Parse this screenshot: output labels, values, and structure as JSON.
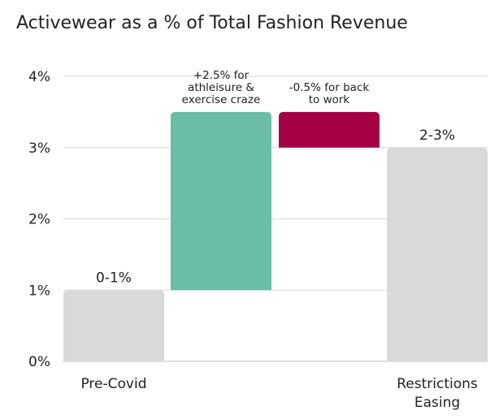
{
  "chart_data": {
    "type": "waterfall",
    "title": "Activewear as a % of Total Fashion Revenue",
    "xlabel": "",
    "ylabel": "",
    "ylim": [
      0,
      4
    ],
    "y_ticks": [
      "0%",
      "1%",
      "2%",
      "3%",
      "4%"
    ],
    "grid": true,
    "legend": "none",
    "categories": [
      "Pre-Covid",
      "",
      "",
      "Restrictions Easing"
    ],
    "bars": [
      {
        "category": "Pre-Covid",
        "kind": "total",
        "start": 0,
        "end": 1,
        "label": "0-1%",
        "annotation": [],
        "color": "#d9d9d9"
      },
      {
        "category": "",
        "kind": "increase",
        "start": 1,
        "end": 3.5,
        "label": "",
        "annotation": [
          "+2.5% for",
          "athleisure &",
          "exercise craze"
        ],
        "color": "#6abda6"
      },
      {
        "category": "",
        "kind": "decrease",
        "start": 3.5,
        "end": 3.0,
        "label": "",
        "annotation": [
          "-0.5% for back",
          "to work"
        ],
        "color": "#a50044"
      },
      {
        "category": "Restrictions Easing",
        "kind": "total",
        "start": 0,
        "end": 3,
        "label": "2-3%",
        "annotation": [],
        "color": "#d9d9d9"
      }
    ],
    "category_label_lines": [
      [
        "Pre-Covid"
      ],
      [],
      [],
      [
        "Restrictions",
        "Easing"
      ]
    ]
  }
}
